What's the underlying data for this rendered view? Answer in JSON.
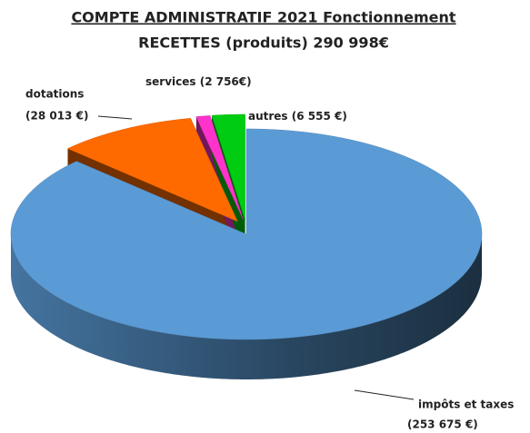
{
  "chart_data": {
    "type": "pie3d",
    "title": "COMPTE ADMINISTRATIF 2021 Fonctionnement",
    "subtitle": "RECETTES (produits)  290 998€",
    "categories": [
      "impôts et taxes",
      "dotations",
      "services",
      "autres"
    ],
    "values": [
      253675,
      28013,
      2756,
      6555
    ],
    "value_labels": [
      "(253 675 €)",
      "(28 013 €)",
      "(2 756€)",
      "(6 555 €)"
    ],
    "colors": [
      "#5b9bd5",
      "#ff6a00",
      "#ff33cc",
      "#00cc11"
    ]
  }
}
